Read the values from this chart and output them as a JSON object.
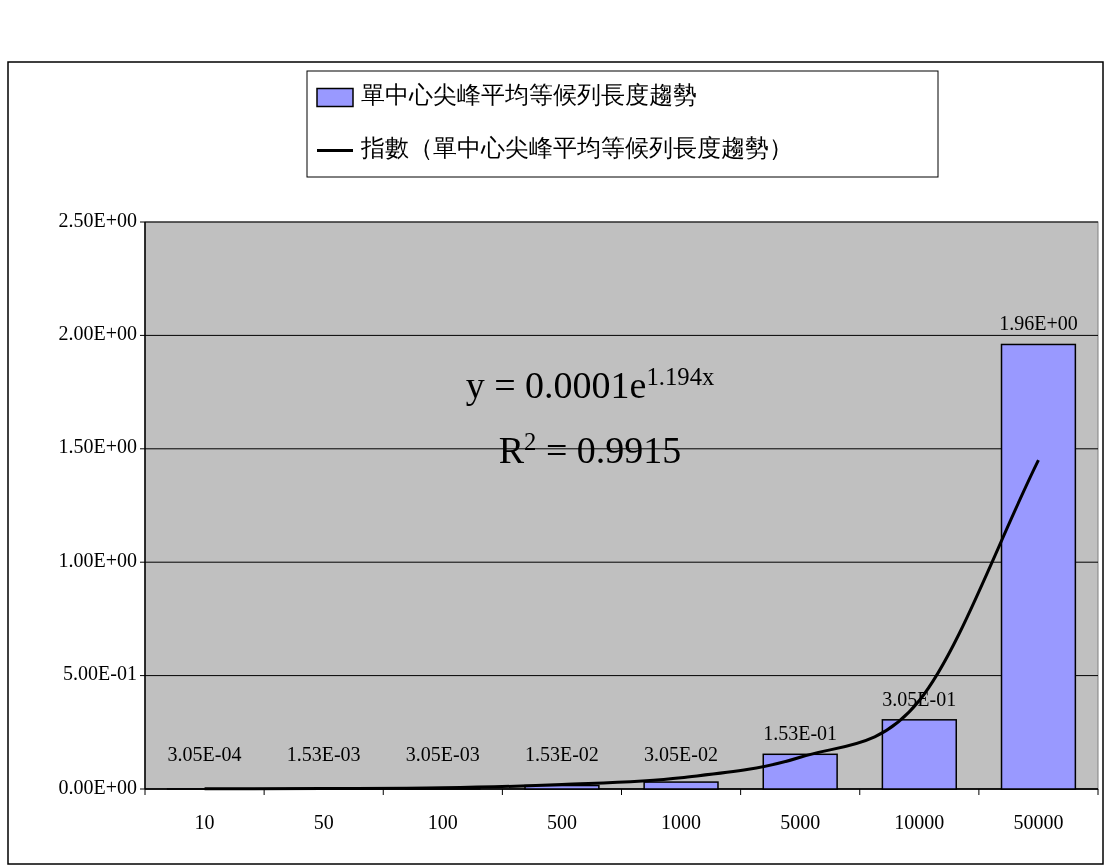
{
  "chart_data": {
    "type": "bar",
    "categories": [
      "10",
      "50",
      "100",
      "500",
      "1000",
      "5000",
      "10000",
      "50000"
    ],
    "series": [
      {
        "name": "單中心尖峰平均等候列長度趨勢",
        "color": "#9999ff",
        "values": [
          0.000305,
          0.00153,
          0.00305,
          0.0153,
          0.0305,
          0.153,
          0.305,
          1.96
        ],
        "value_labels": [
          "3.05E-04",
          "1.53E-03",
          "3.05E-03",
          "1.53E-02",
          "3.05E-02",
          "1.53E-01",
          "3.05E-01",
          "1.96E+00"
        ]
      },
      {
        "name": "指數（單中心尖峰平均等候列長度趨勢）",
        "type": "line",
        "color": "#000000",
        "values": [
          0.001,
          0.002,
          0.005,
          0.02,
          0.05,
          0.14,
          0.39,
          1.45
        ]
      }
    ],
    "ylim": [
      0,
      2.5
    ],
    "yticks": [
      {
        "value": 0,
        "label": "0.00E+00"
      },
      {
        "value": 0.5,
        "label": "5.00E-01"
      },
      {
        "value": 1,
        "label": "1.00E+00"
      },
      {
        "value": 1.5,
        "label": "1.50E+00"
      },
      {
        "value": 2,
        "label": "2.00E+00"
      },
      {
        "value": 2.5,
        "label": "2.50E+00"
      }
    ],
    "grid": "y",
    "legend": "top",
    "annotations": [
      "y = 0.0001e$^{1.194x}$",
      "R$^{2}$ = 0.9915"
    ]
  }
}
